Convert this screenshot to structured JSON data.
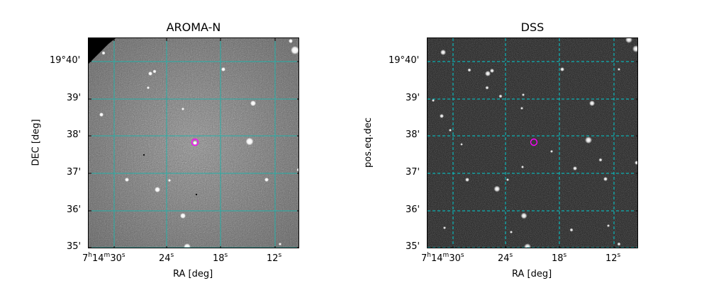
{
  "panels": [
    {
      "id": "aroma",
      "title": "AROMA-N",
      "xlabel": "RA [deg]",
      "ylabel": "DEC [deg]",
      "image": "noisy grayscale sky image, stars as white dots, dark corner at top-left",
      "grid_color": "#20b2aa",
      "grid_style": "solid",
      "marker_color": "#ff00ff"
    },
    {
      "id": "dss",
      "title": "DSS",
      "xlabel": "RA [deg]",
      "ylabel": "pos.eq.dec",
      "image": "dark sky image with white stars",
      "grid_color": "#00ced1",
      "grid_style": "dashed",
      "marker_color": "#ff00ff"
    }
  ],
  "x_ticks": [
    {
      "h": "7",
      "m": "14",
      "s": "30",
      "full": true
    },
    {
      "s": "24"
    },
    {
      "s": "18"
    },
    {
      "s": "12"
    }
  ],
  "y_ticks": [
    "19°40'",
    "39'",
    "38'",
    "37'",
    "36'",
    "35'"
  ]
}
